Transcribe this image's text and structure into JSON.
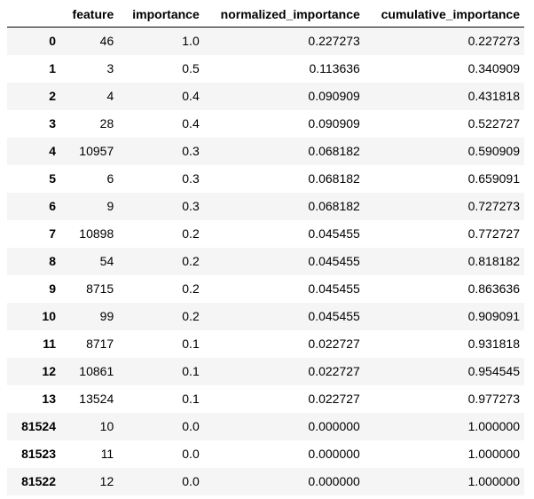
{
  "table": {
    "columns": [
      "",
      "feature",
      "importance",
      "normalized_importance",
      "cumulative_importance"
    ],
    "rows": [
      {
        "index": "0",
        "feature": "46",
        "importance": "1.0",
        "normalized_importance": "0.227273",
        "cumulative_importance": "0.227273"
      },
      {
        "index": "1",
        "feature": "3",
        "importance": "0.5",
        "normalized_importance": "0.113636",
        "cumulative_importance": "0.340909"
      },
      {
        "index": "2",
        "feature": "4",
        "importance": "0.4",
        "normalized_importance": "0.090909",
        "cumulative_importance": "0.431818"
      },
      {
        "index": "3",
        "feature": "28",
        "importance": "0.4",
        "normalized_importance": "0.090909",
        "cumulative_importance": "0.522727"
      },
      {
        "index": "4",
        "feature": "10957",
        "importance": "0.3",
        "normalized_importance": "0.068182",
        "cumulative_importance": "0.590909"
      },
      {
        "index": "5",
        "feature": "6",
        "importance": "0.3",
        "normalized_importance": "0.068182",
        "cumulative_importance": "0.659091"
      },
      {
        "index": "6",
        "feature": "9",
        "importance": "0.3",
        "normalized_importance": "0.068182",
        "cumulative_importance": "0.727273"
      },
      {
        "index": "7",
        "feature": "10898",
        "importance": "0.2",
        "normalized_importance": "0.045455",
        "cumulative_importance": "0.772727"
      },
      {
        "index": "8",
        "feature": "54",
        "importance": "0.2",
        "normalized_importance": "0.045455",
        "cumulative_importance": "0.818182"
      },
      {
        "index": "9",
        "feature": "8715",
        "importance": "0.2",
        "normalized_importance": "0.045455",
        "cumulative_importance": "0.863636"
      },
      {
        "index": "10",
        "feature": "99",
        "importance": "0.2",
        "normalized_importance": "0.045455",
        "cumulative_importance": "0.909091"
      },
      {
        "index": "11",
        "feature": "8717",
        "importance": "0.1",
        "normalized_importance": "0.022727",
        "cumulative_importance": "0.931818"
      },
      {
        "index": "12",
        "feature": "10861",
        "importance": "0.1",
        "normalized_importance": "0.022727",
        "cumulative_importance": "0.954545"
      },
      {
        "index": "13",
        "feature": "13524",
        "importance": "0.1",
        "normalized_importance": "0.022727",
        "cumulative_importance": "0.977273"
      },
      {
        "index": "81524",
        "feature": "10",
        "importance": "0.0",
        "normalized_importance": "0.000000",
        "cumulative_importance": "1.000000"
      },
      {
        "index": "81523",
        "feature": "11",
        "importance": "0.0",
        "normalized_importance": "0.000000",
        "cumulative_importance": "1.000000"
      },
      {
        "index": "81522",
        "feature": "12",
        "importance": "0.0",
        "normalized_importance": "0.000000",
        "cumulative_importance": "1.000000"
      }
    ]
  }
}
